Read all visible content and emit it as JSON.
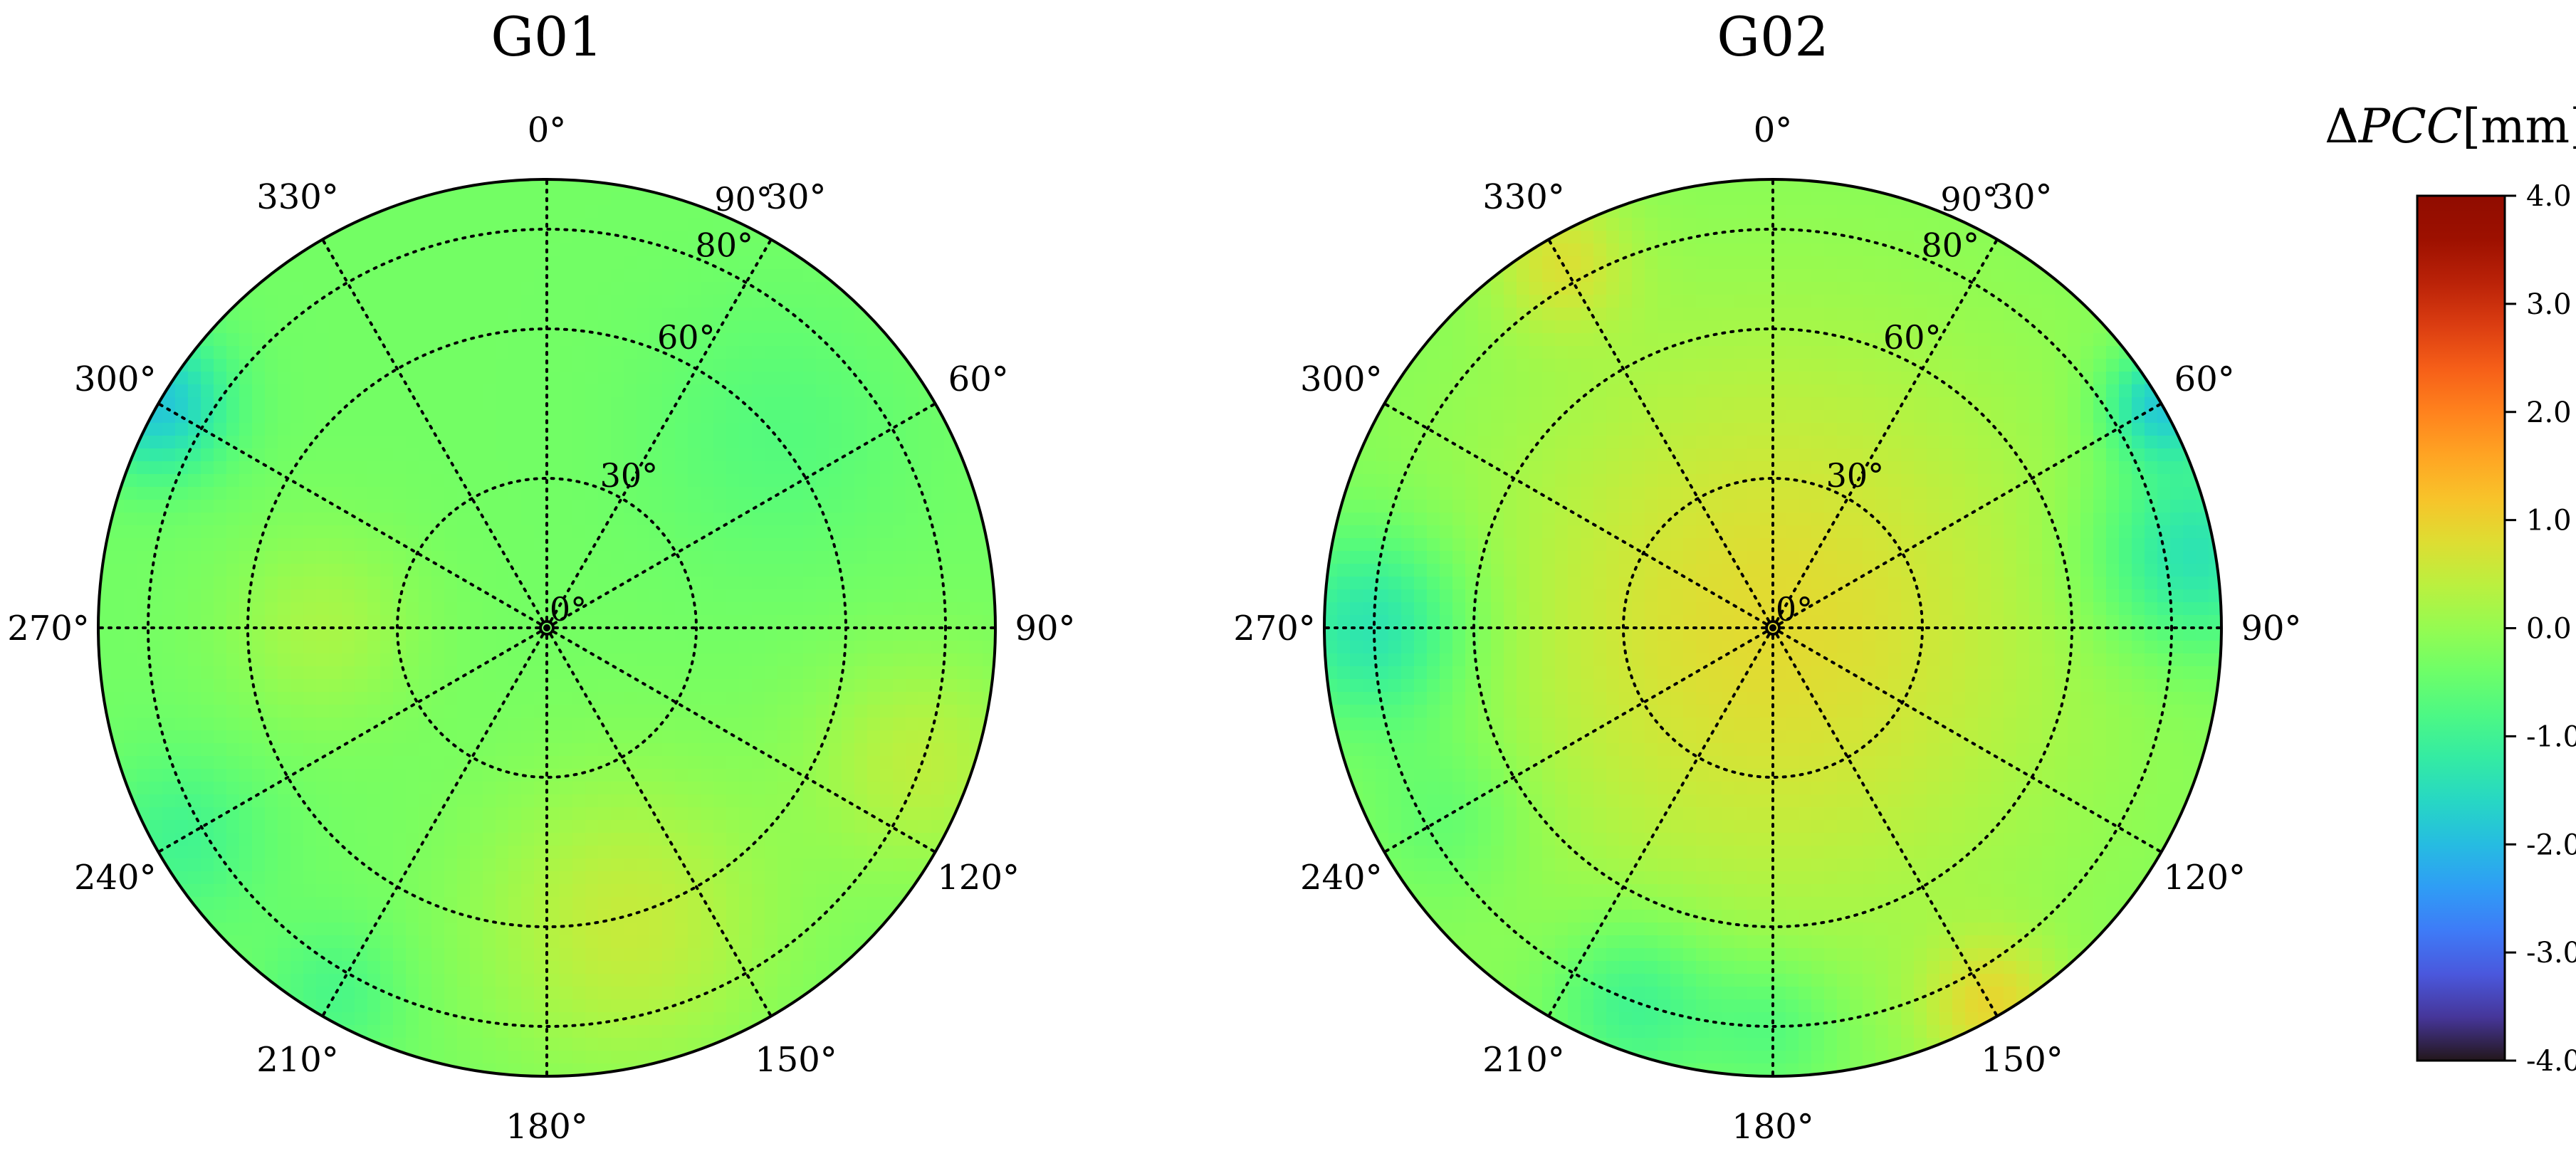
{
  "chart_data": [
    {
      "type": "heatmap",
      "projection": "polar",
      "title": "G01",
      "angular_ticks": [
        "0°",
        "30°",
        "60°",
        "90°",
        "120°",
        "150°",
        "180°",
        "210°",
        "240°",
        "270°",
        "300°",
        "330°"
      ],
      "radial_ticks": [
        "0°",
        "30°",
        "60°",
        "80°",
        "90°"
      ],
      "radial_values": [
        0,
        30,
        60,
        80,
        90
      ],
      "zone_max": 90,
      "grid": true,
      "field": {
        "base": -0.35,
        "blobs": [
          {
            "azimuth": 165,
            "zenith": 62,
            "amp": 0.85,
            "sigma": 22
          },
          {
            "azimuth": 110,
            "zenith": 80,
            "amp": 0.75,
            "sigma": 16
          },
          {
            "azimuth": 270,
            "zenith": 45,
            "amp": 0.55,
            "sigma": 14
          },
          {
            "azimuth": 300,
            "zenith": 90,
            "amp": -1.5,
            "sigma": 10
          },
          {
            "azimuth": 50,
            "zenith": 60,
            "amp": -0.35,
            "sigma": 18
          },
          {
            "azimuth": 240,
            "zenith": 85,
            "amp": -0.6,
            "sigma": 12
          },
          {
            "azimuth": 210,
            "zenith": 85,
            "amp": -0.5,
            "sigma": 10
          }
        ]
      }
    },
    {
      "type": "heatmap",
      "projection": "polar",
      "title": "G02",
      "angular_ticks": [
        "0°",
        "30°",
        "60°",
        "90°",
        "120°",
        "150°",
        "180°",
        "210°",
        "240°",
        "270°",
        "300°",
        "330°"
      ],
      "radial_ticks": [
        "0°",
        "30°",
        "60°",
        "80°",
        "90°"
      ],
      "radial_values": [
        0,
        30,
        60,
        80,
        90
      ],
      "zone_max": 90,
      "grid": true,
      "field": {
        "base": -0.2,
        "blobs": [
          {
            "azimuth": 0,
            "zenith": 0,
            "amp": 1.05,
            "sigma": 42
          },
          {
            "azimuth": 150,
            "zenith": 88,
            "amp": 1.0,
            "sigma": 10
          },
          {
            "azimuth": 330,
            "zenith": 85,
            "amp": 0.8,
            "sigma": 10
          },
          {
            "azimuth": 270,
            "zenith": 80,
            "amp": -1.3,
            "sigma": 14
          },
          {
            "azimuth": 80,
            "zenith": 85,
            "amp": -1.3,
            "sigma": 14
          },
          {
            "azimuth": 60,
            "zenith": 90,
            "amp": -1.6,
            "sigma": 8
          },
          {
            "azimuth": 200,
            "zenith": 80,
            "amp": -0.9,
            "sigma": 12
          },
          {
            "azimuth": 180,
            "zenith": 80,
            "amp": -0.6,
            "sigma": 10
          },
          {
            "azimuth": 240,
            "zenith": 75,
            "amp": -0.5,
            "sigma": 12
          }
        ]
      }
    }
  ],
  "colorbar": {
    "title_symbol": "Δ",
    "title_italic": "PCC",
    "title_unit": "[mm]",
    "min": -4.0,
    "max": 4.0,
    "ticks": [
      "4.0",
      "3.0",
      "2.0",
      "1.0",
      "0.0",
      "-1.0",
      "-2.0",
      "-3.0",
      "-4.0"
    ],
    "tick_values": [
      4,
      3,
      2,
      1,
      0,
      -1,
      -2,
      -3,
      -4
    ],
    "colormap": "turbo"
  }
}
